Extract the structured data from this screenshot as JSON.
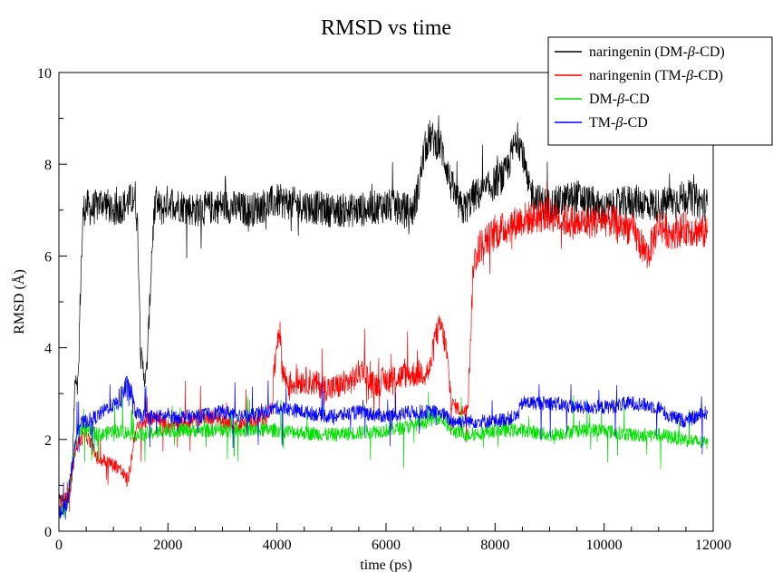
{
  "chart_data": {
    "type": "line",
    "title": "RMSD vs time",
    "xlabel": "time (ps)",
    "ylabel": "RMSD (Å)",
    "xlim": [
      0,
      12000
    ],
    "ylim": [
      0,
      10
    ],
    "xticks": [
      0,
      2000,
      4000,
      6000,
      8000,
      10000,
      12000
    ],
    "yticks": [
      0,
      2,
      4,
      6,
      8,
      10
    ],
    "x_minor_step": 500,
    "y_minor_step": 1,
    "grid": false,
    "legend_position": "top-right",
    "legend": {
      "entries": [
        {
          "prefix": "naringenin (DM-",
          "beta": "β",
          "suffix": "-CD)"
        },
        {
          "prefix": "naringenin (TM-",
          "beta": "β",
          "suffix": "-CD)"
        },
        {
          "prefix": "DM-",
          "beta": "β",
          "suffix": "-CD"
        },
        {
          "prefix": "TM-",
          "beta": "β",
          "suffix": "-CD"
        }
      ]
    },
    "series": [
      {
        "color": "#000000",
        "x": [
          0,
          100,
          200,
          250,
          300,
          350,
          400,
          450,
          500,
          600,
          800,
          1000,
          1200,
          1400,
          1450,
          1500,
          1550,
          1600,
          1650,
          1700,
          1750,
          1800,
          1900,
          2000,
          2500,
          3000,
          3500,
          4000,
          4500,
          5000,
          5500,
          6000,
          6400,
          6500,
          6600,
          6700,
          6800,
          6900,
          7000,
          7100,
          7200,
          7300,
          7400,
          7500,
          7600,
          7800,
          8000,
          8200,
          8300,
          8400,
          8500,
          8600,
          8800,
          9000,
          9500,
          10000,
          10500,
          11000,
          11500,
          11900
        ],
        "y": [
          0.65,
          0.7,
          0.8,
          1.5,
          3.5,
          3.2,
          5.5,
          7.0,
          7.1,
          7.0,
          7.2,
          7.0,
          7.1,
          7.3,
          6.5,
          3.8,
          3.5,
          3.3,
          4.5,
          6.0,
          7.0,
          7.1,
          7.0,
          7.2,
          7.0,
          7.1,
          7.0,
          7.2,
          7.1,
          7.0,
          7.0,
          7.1,
          7.0,
          7.0,
          7.5,
          8.3,
          8.6,
          8.5,
          8.4,
          8.0,
          7.5,
          7.2,
          7.0,
          7.1,
          7.3,
          7.4,
          7.6,
          7.8,
          8.2,
          8.6,
          8.3,
          7.5,
          7.2,
          7.1,
          7.3,
          7.0,
          7.2,
          7.1,
          7.3,
          7.1
        ]
      },
      {
        "color": "#ff0000",
        "x": [
          0,
          100,
          200,
          300,
          400,
          500,
          700,
          900,
          1100,
          1250,
          1300,
          1400,
          1600,
          1800,
          2000,
          2400,
          2800,
          3200,
          3600,
          3800,
          3900,
          4000,
          4050,
          4100,
          4200,
          4500,
          5000,
          5400,
          5600,
          5700,
          5800,
          6000,
          6400,
          6800,
          6900,
          7000,
          7100,
          7200,
          7300,
          7400,
          7500,
          7550,
          7600,
          7700,
          7800,
          8000,
          8500,
          9000,
          9500,
          10000,
          10500,
          10800,
          11000,
          11200,
          11500,
          11900
        ],
        "y": [
          0.6,
          0.7,
          0.8,
          1.8,
          2.0,
          2.1,
          1.6,
          1.5,
          1.4,
          1.1,
          1.3,
          2.2,
          2.4,
          2.5,
          2.3,
          2.4,
          2.5,
          2.3,
          2.4,
          2.5,
          2.7,
          4.2,
          4.4,
          3.5,
          3.2,
          3.3,
          3.1,
          3.3,
          3.6,
          3.2,
          3.2,
          3.3,
          3.4,
          3.5,
          4.2,
          4.5,
          4.0,
          2.8,
          2.7,
          2.6,
          2.8,
          4.2,
          5.8,
          6.2,
          6.3,
          6.5,
          6.8,
          6.9,
          6.7,
          6.8,
          6.6,
          6.0,
          6.7,
          6.5,
          6.6,
          6.5
        ]
      },
      {
        "color": "#00dd00",
        "x": [
          0,
          150,
          250,
          350,
          500,
          800,
          1000,
          1500,
          2000,
          3000,
          4000,
          5000,
          6000,
          6500,
          7000,
          7200,
          7500,
          8000,
          8500,
          9000,
          9500,
          10000,
          10500,
          11000,
          11500,
          11900
        ],
        "y": [
          0.4,
          0.6,
          1.5,
          2.2,
          2.2,
          2.1,
          2.2,
          2.1,
          2.2,
          2.2,
          2.2,
          2.1,
          2.2,
          2.3,
          2.5,
          2.2,
          2.1,
          2.2,
          2.2,
          2.1,
          2.2,
          2.2,
          2.1,
          2.1,
          2.0,
          1.9
        ]
      },
      {
        "color": "#0000ff",
        "x": [
          0,
          150,
          250,
          350,
          500,
          700,
          900,
          1100,
          1200,
          1300,
          1400,
          1500,
          2000,
          2500,
          3000,
          3500,
          4000,
          4500,
          5000,
          5500,
          6000,
          6500,
          7000,
          7200,
          7500,
          8000,
          8400,
          8500,
          9000,
          9500,
          10000,
          10500,
          11000,
          11200,
          11500,
          11900
        ],
        "y": [
          0.4,
          0.6,
          1.5,
          2.3,
          2.4,
          2.5,
          2.7,
          2.8,
          3.1,
          3.1,
          2.6,
          2.5,
          2.5,
          2.5,
          2.6,
          2.5,
          2.7,
          2.6,
          2.5,
          2.6,
          2.5,
          2.6,
          2.6,
          2.4,
          2.4,
          2.4,
          2.5,
          2.8,
          2.8,
          2.7,
          2.7,
          2.8,
          2.7,
          2.5,
          2.4,
          2.6
        ]
      }
    ]
  }
}
